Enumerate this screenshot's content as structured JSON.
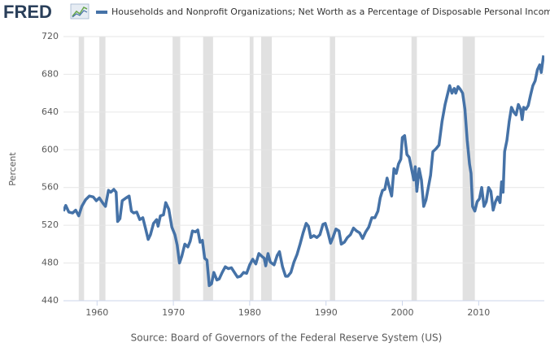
{
  "chart_data": {
    "type": "line",
    "logo": "FRED",
    "ylabel": "Percent",
    "source": "Source: Board of Governors of the Federal Reserve System (US)",
    "xlim": [
      1955.6,
      2018.6
    ],
    "ylim": [
      440,
      720
    ],
    "xticks": [
      1960,
      1970,
      1980,
      1990,
      2000,
      2010
    ],
    "yticks": [
      440,
      480,
      520,
      560,
      600,
      640,
      680,
      720
    ],
    "grid": true,
    "recessions": [
      [
        1957.6,
        1958.3
      ],
      [
        1960.3,
        1961.1
      ],
      [
        1969.9,
        1970.9
      ],
      [
        1973.9,
        1975.2
      ],
      [
        1980.0,
        1980.5
      ],
      [
        1981.5,
        1982.9
      ],
      [
        1990.5,
        1991.2
      ],
      [
        2001.2,
        2001.9
      ],
      [
        2007.9,
        2009.5
      ]
    ],
    "recession_color": "#e1e1e1",
    "x": [
      1955.6,
      1955.9,
      1956.3,
      1956.8,
      1957.2,
      1957.6,
      1958.0,
      1958.5,
      1959.0,
      1959.5,
      1959.9,
      1960.3,
      1960.8,
      1961.1,
      1961.5,
      1961.8,
      1962.2,
      1962.5,
      1962.7,
      1963.0,
      1963.3,
      1963.8,
      1964.2,
      1964.5,
      1964.8,
      1965.2,
      1965.6,
      1966.0,
      1966.4,
      1966.7,
      1967.0,
      1967.4,
      1967.8,
      1968.0,
      1968.3,
      1968.7,
      1969.0,
      1969.4,
      1969.8,
      1970.2,
      1970.5,
      1970.8,
      1971.1,
      1971.5,
      1971.9,
      1972.2,
      1972.5,
      1972.9,
      1973.2,
      1973.5,
      1973.8,
      1974.1,
      1974.4,
      1974.7,
      1975.0,
      1975.3,
      1975.7,
      1976.0,
      1976.4,
      1976.8,
      1977.2,
      1977.6,
      1978.0,
      1978.4,
      1978.8,
      1979.2,
      1979.6,
      1980.0,
      1980.4,
      1980.8,
      1981.2,
      1981.6,
      1981.9,
      1982.1,
      1982.4,
      1982.7,
      1983.2,
      1983.6,
      1983.9,
      1984.3,
      1984.7,
      1985.0,
      1985.4,
      1985.8,
      1986.2,
      1986.6,
      1987.0,
      1987.4,
      1987.7,
      1988.0,
      1988.4,
      1988.8,
      1989.2,
      1989.6,
      1989.9,
      1990.2,
      1990.6,
      1990.9,
      1991.3,
      1991.7,
      1992.0,
      1992.4,
      1992.8,
      1993.2,
      1993.6,
      1994.0,
      1994.4,
      1994.8,
      1995.2,
      1995.6,
      1996.0,
      1996.4,
      1996.8,
      1997.1,
      1997.4,
      1997.7,
      1998.0,
      1998.3,
      1998.6,
      1998.9,
      1999.2,
      1999.5,
      1999.8,
      2000.0,
      2000.3,
      2000.6,
      2000.9,
      2001.2,
      2001.5,
      2001.7,
      2001.9,
      2002.2,
      2002.5,
      2002.8,
      2003.1,
      2003.4,
      2003.7,
      2004.0,
      2004.4,
      2004.8,
      2005.2,
      2005.6,
      2005.9,
      2006.2,
      2006.5,
      2006.8,
      2007.0,
      2007.3,
      2007.6,
      2007.9,
      2008.2,
      2008.5,
      2008.8,
      2009.0,
      2009.2,
      2009.5,
      2009.8,
      2010.1,
      2010.4,
      2010.7,
      2011.0,
      2011.3,
      2011.6,
      2011.9,
      2012.2,
      2012.5,
      2012.8,
      2013.0,
      2013.2,
      2013.4,
      2013.7,
      2014.0,
      2014.3,
      2014.6,
      2014.9,
      2015.2,
      2015.5,
      2015.7,
      2015.9,
      2016.2,
      2016.5,
      2016.8,
      2017.1,
      2017.4,
      2017.7,
      2018.0,
      2018.2,
      2018.5
    ],
    "series": [
      {
        "name": "Households and Nonprofit Organizations; Net Worth as a Percentage of Disposable Personal Income",
        "color": "#4572a7",
        "values": [
          535,
          541,
          534,
          533,
          536,
          530,
          540,
          547,
          551,
          550,
          546,
          549,
          543,
          540,
          557,
          555,
          558,
          555,
          524,
          527,
          546,
          549,
          551,
          535,
          533,
          534,
          526,
          528,
          515,
          505,
          510,
          522,
          526,
          519,
          530,
          531,
          544,
          537,
          518,
          510,
          499,
          480,
          487,
          500,
          497,
          503,
          514,
          513,
          515,
          502,
          504,
          485,
          483,
          456,
          458,
          470,
          462,
          463,
          470,
          476,
          474,
          475,
          470,
          465,
          466,
          470,
          469,
          478,
          484,
          479,
          490,
          487,
          485,
          477,
          490,
          481,
          478,
          488,
          492,
          476,
          466,
          466,
          470,
          481,
          489,
          500,
          512,
          522,
          519,
          507,
          509,
          507,
          510,
          521,
          522,
          514,
          501,
          507,
          516,
          514,
          500,
          502,
          507,
          510,
          517,
          514,
          512,
          506,
          513,
          518,
          528,
          528,
          535,
          549,
          557,
          558,
          570,
          560,
          551,
          580,
          575,
          585,
          590,
          613,
          615,
          595,
          592,
          580,
          568,
          582,
          556,
          580,
          568,
          540,
          547,
          560,
          573,
          598,
          601,
          605,
          630,
          648,
          658,
          668,
          660,
          665,
          660,
          667,
          664,
          660,
          643,
          610,
          585,
          575,
          540,
          535,
          545,
          548,
          560,
          540,
          545,
          560,
          556,
          536,
          545,
          550,
          544,
          566,
          555,
          598,
          610,
          630,
          645,
          640,
          637,
          648,
          643,
          632,
          645,
          643,
          647,
          658,
          668,
          673,
          685,
          690,
          682,
          700
        ]
      }
    ]
  }
}
